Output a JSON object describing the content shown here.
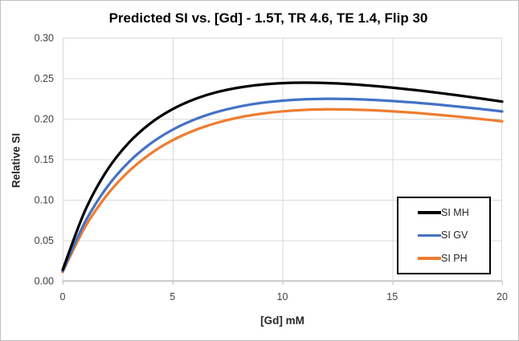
{
  "chart": {
    "title": "Predicted SI vs. [Gd] - 1.5T, TR 4.6, TE 1.4, Flip 30",
    "y_axis": {
      "title": "Relative SI",
      "ticks": [
        {
          "label": "0.30",
          "value": 0.3
        },
        {
          "label": "0.25",
          "value": 0.25
        },
        {
          "label": "0.20",
          "value": 0.2
        },
        {
          "label": "0.15",
          "value": 0.15
        },
        {
          "label": "0.10",
          "value": 0.1
        },
        {
          "label": "0.05",
          "value": 0.05
        },
        {
          "label": "0.00",
          "value": 0.0
        }
      ]
    },
    "x_axis": {
      "title": "[Gd] mM",
      "ticks": [
        {
          "label": "0",
          "value": 0
        },
        {
          "label": "5",
          "value": 5
        },
        {
          "label": "10",
          "value": 10
        },
        {
          "label": "15",
          "value": 15
        },
        {
          "label": "20",
          "value": 20
        }
      ]
    },
    "legend": [
      {
        "label": "SI MH",
        "color": "#000000"
      },
      {
        "label": "SI GV",
        "color": "#4472C4"
      },
      {
        "label": "SI PH",
        "color": "#ED7D31"
      }
    ],
    "colors": {
      "gridline": "#D9D9D9",
      "axis_line": "#BFBFBF",
      "tick_text": "#404040",
      "plot_border": "#D9D9D9"
    }
  },
  "chart_data": {
    "type": "line",
    "title": "Predicted SI vs. [Gd] - 1.5T, TR 4.6, TE 1.4, Flip 30",
    "xlabel": "[Gd] mM",
    "ylabel": "Relative SI",
    "xlim": [
      0,
      20
    ],
    "ylim": [
      0,
      0.3
    ],
    "x_ticks": [
      0,
      5,
      10,
      15,
      20
    ],
    "y_ticks": [
      0.0,
      0.05,
      0.1,
      0.15,
      0.2,
      0.25,
      0.3
    ],
    "grid": true,
    "legend_position": "inside-right",
    "line_style": "smooth",
    "x": [
      0,
      1,
      2,
      3,
      4,
      5,
      6,
      7,
      8,
      9,
      10,
      11,
      12,
      13,
      14,
      15,
      16,
      17,
      18,
      19,
      20
    ],
    "series": [
      {
        "name": "SI MH",
        "color": "#000000",
        "values": [
          0.0135,
          0.0854,
          0.1355,
          0.1701,
          0.1945,
          0.2118,
          0.2241,
          0.2327,
          0.2384,
          0.242,
          0.2439,
          0.2445,
          0.244,
          0.2428,
          0.2408,
          0.2384,
          0.2355,
          0.2323,
          0.2288,
          0.2251,
          0.2212
        ]
      },
      {
        "name": "SI GV",
        "color": "#4472C4",
        "values": [
          0.012,
          0.0716,
          0.1149,
          0.1463,
          0.1694,
          0.1864,
          0.199,
          0.2082,
          0.2148,
          0.2194,
          0.2223,
          0.224,
          0.2246,
          0.2244,
          0.2234,
          0.2219,
          0.22,
          0.2177,
          0.215,
          0.2121,
          0.209
        ]
      },
      {
        "name": "SI PH",
        "color": "#ED7D31",
        "values": [
          0.011,
          0.0654,
          0.1053,
          0.1349,
          0.1569,
          0.1734,
          0.1857,
          0.1948,
          0.2015,
          0.2061,
          0.2091,
          0.2109,
          0.2116,
          0.2114,
          0.2106,
          0.2092,
          0.2074,
          0.2051,
          0.2026,
          0.1998,
          0.1968
        ]
      }
    ]
  }
}
